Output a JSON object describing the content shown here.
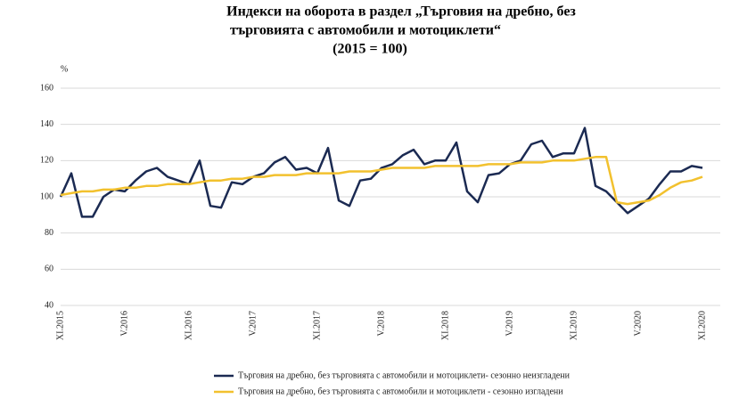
{
  "chart_data": {
    "type": "line",
    "title": [
      "Индекси на оборота в раздел „Търговия на дребно, без",
      "търговията с автомобили и мотоциклети“",
      "(2015 = 100)"
    ],
    "y_label": "%",
    "categories": [
      "XI.2015",
      null,
      null,
      null,
      null,
      null,
      "V.2016",
      null,
      null,
      null,
      null,
      null,
      "XI.2016",
      null,
      null,
      null,
      null,
      null,
      "V.2017",
      null,
      null,
      null,
      null,
      null,
      "XI.2017",
      null,
      null,
      null,
      null,
      null,
      "V.2018",
      null,
      null,
      null,
      null,
      null,
      "XI.2018",
      null,
      null,
      null,
      null,
      null,
      "V.2019",
      null,
      null,
      null,
      null,
      null,
      "XI.2019",
      null,
      null,
      null,
      null,
      null,
      "V.2020",
      null,
      null,
      null,
      null,
      null,
      "XI.2020"
    ],
    "series": [
      {
        "name": "Търговия на дребно, без търговията с автомобили и мотоциклети- сезонно неизгладени",
        "color": "#1b2a52",
        "values": [
          100,
          113,
          89,
          89,
          100,
          104,
          103,
          109,
          114,
          116,
          111,
          109,
          107,
          120,
          95,
          94,
          108,
          107,
          111,
          113,
          119,
          122,
          115,
          116,
          113,
          127,
          98,
          95,
          109,
          110,
          116,
          118,
          123,
          126,
          118,
          120,
          120,
          130,
          103,
          97,
          112,
          113,
          118,
          120,
          129,
          131,
          122,
          124,
          124,
          138,
          106,
          103,
          97,
          91,
          95,
          99,
          107,
          114,
          114,
          117,
          116
        ]
      },
      {
        "name": "Търговия на дребно, без търговията с автомобили и мотоциклети - сезонно изгладени",
        "color": "#f2c12e",
        "values": [
          101,
          102,
          103,
          103,
          104,
          104,
          105,
          105,
          106,
          106,
          107,
          107,
          107,
          108,
          109,
          109,
          110,
          110,
          111,
          111,
          112,
          112,
          112,
          113,
          113,
          113,
          113,
          114,
          114,
          114,
          115,
          116,
          116,
          116,
          116,
          117,
          117,
          117,
          117,
          117,
          118,
          118,
          118,
          119,
          119,
          119,
          120,
          120,
          120,
          121,
          122,
          122,
          97,
          96,
          97,
          98,
          101,
          105,
          108,
          109,
          111
        ]
      }
    ],
    "ylim": [
      40,
      160
    ],
    "yticks": [
      40,
      60,
      80,
      100,
      120,
      140,
      160
    ],
    "grid": true
  }
}
